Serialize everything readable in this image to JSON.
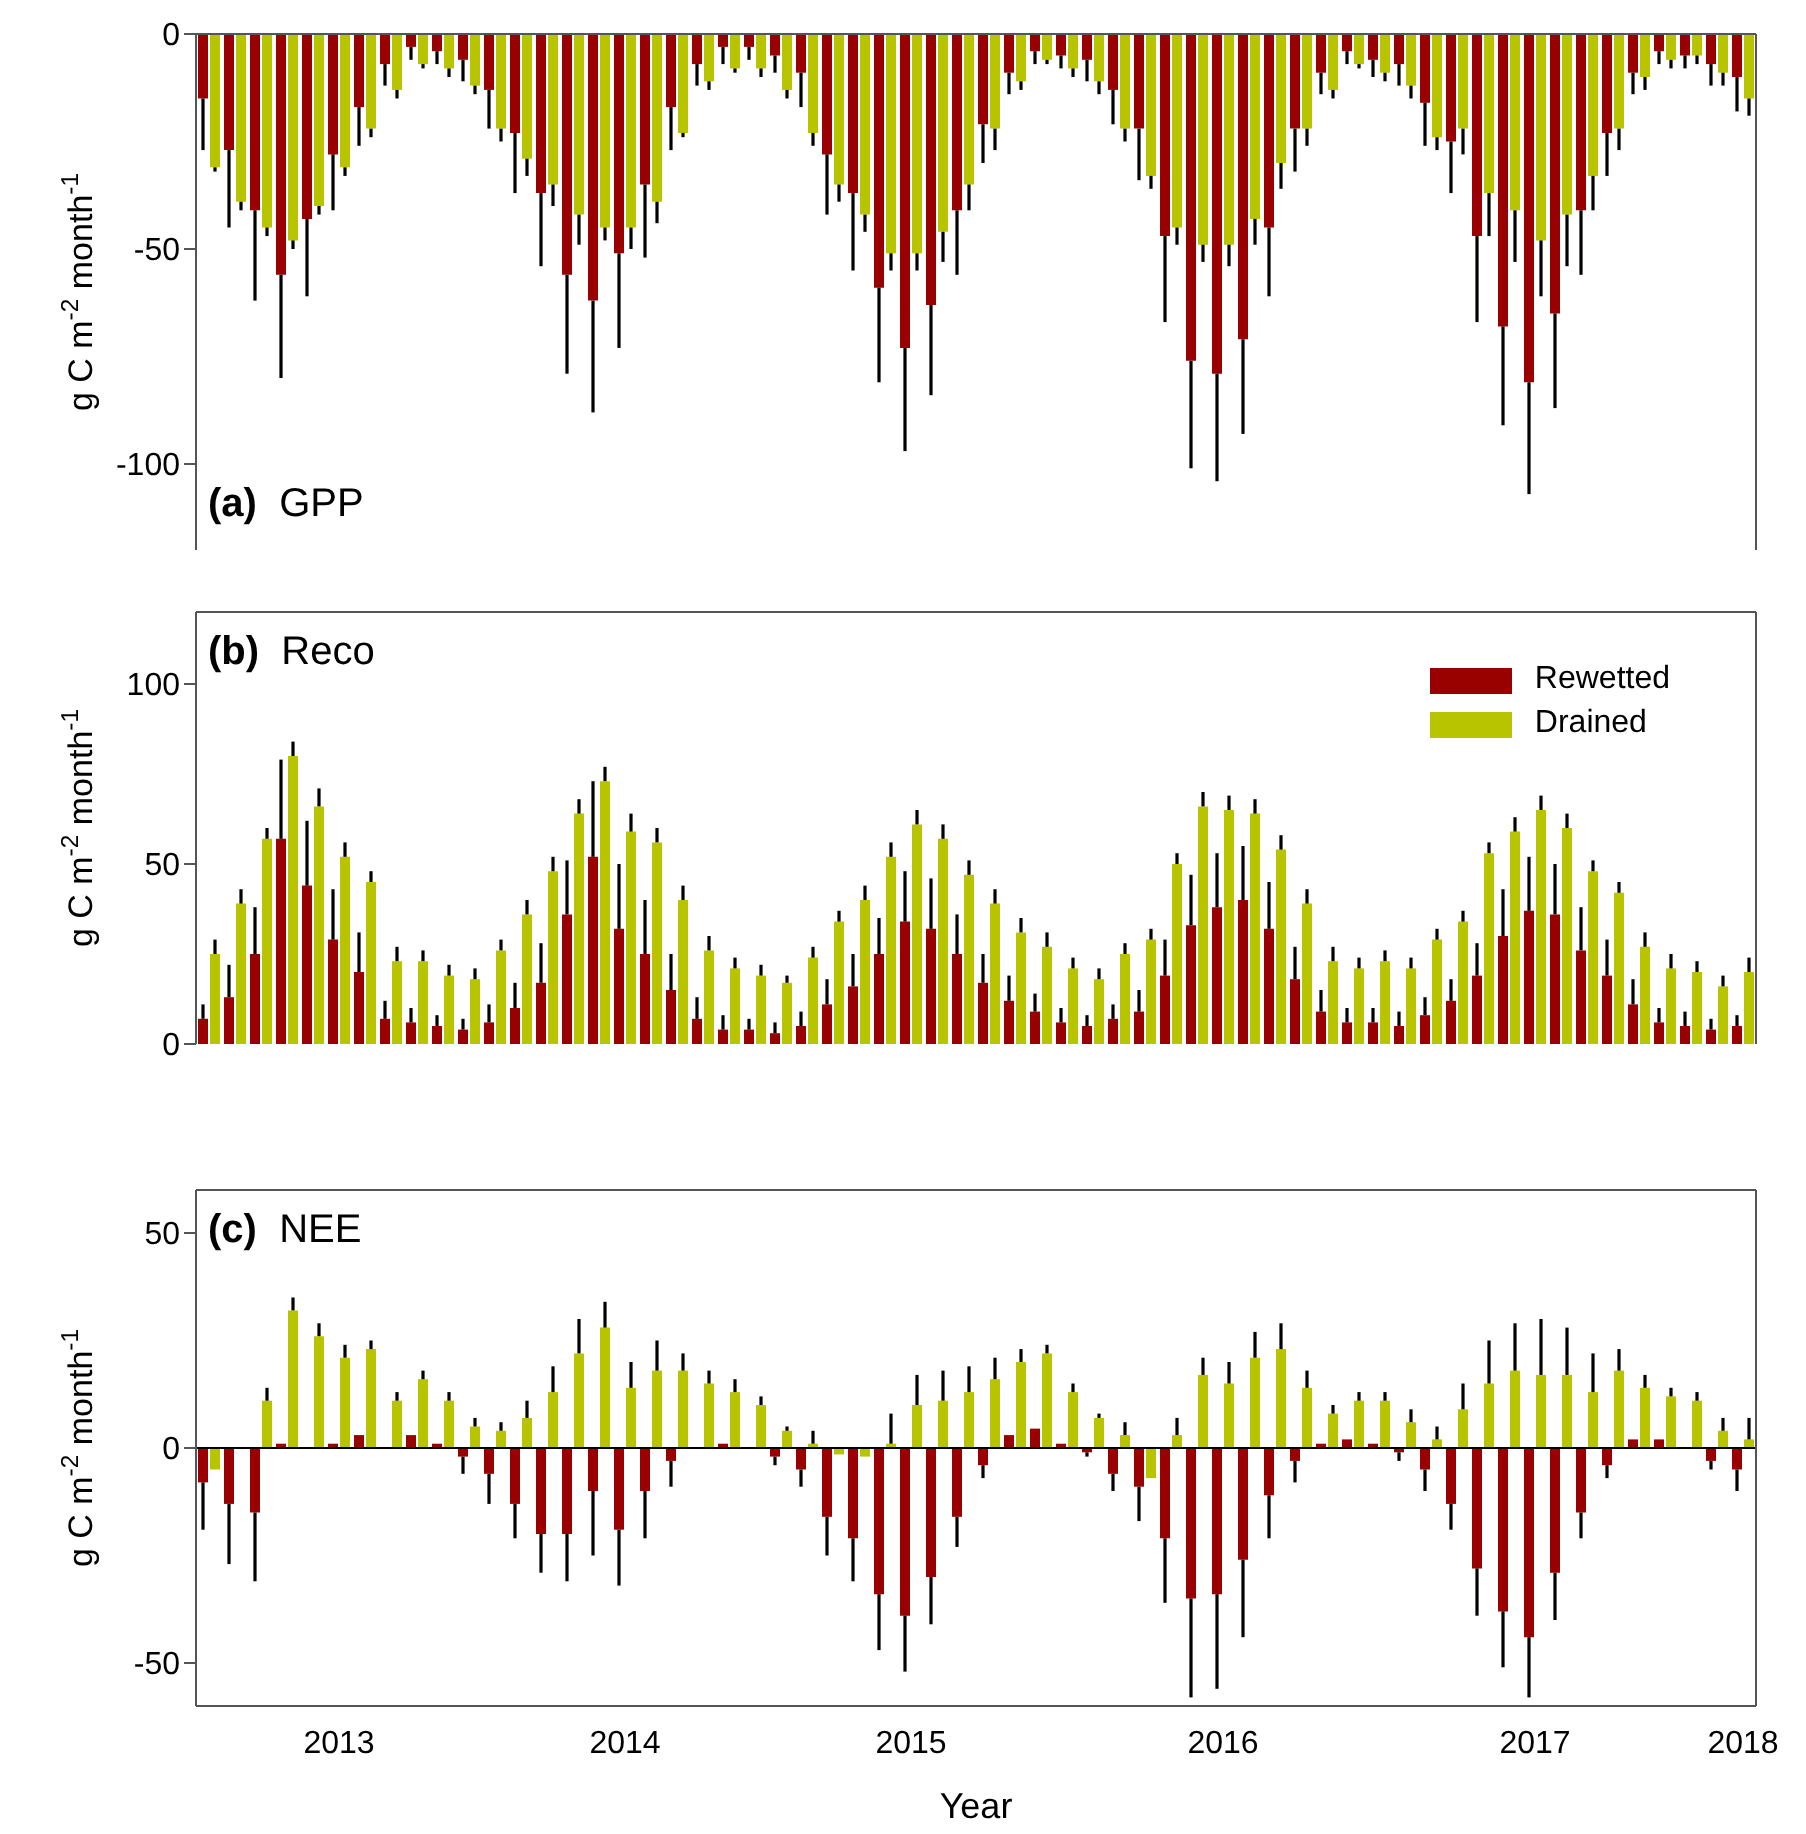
{
  "chart_data": [
    {
      "type": "bar",
      "title": "(a) GPP",
      "ylabel": "g C m$^{-2}$ month$^{-1}$",
      "tick_labels": "y",
      "categories": [
        null,
        null,
        null,
        null,
        null,
        "2013",
        null,
        null,
        null,
        null,
        null,
        null,
        null,
        null,
        null,
        null,
        "2014",
        null,
        null,
        null,
        null,
        null,
        null,
        null,
        null,
        null,
        null,
        "2015",
        null,
        null,
        null,
        null,
        null,
        null,
        null,
        null,
        null,
        null,
        null,
        "2016",
        null,
        null,
        null,
        null,
        null,
        null,
        null,
        null,
        null,
        null,
        null,
        "2017",
        null,
        null,
        null,
        null,
        null,
        null,
        null,
        "2018"
      ],
      "ylim": [
        -120,
        0
      ],
      "yticks": [
        -100,
        -50,
        0
      ],
      "series": [
        {
          "color": "#990000",
          "values": [
            -15,
            -27,
            -41,
            -56,
            -43,
            -28,
            -17,
            -7,
            -3,
            -4,
            -6,
            -13,
            -23,
            -37,
            -56,
            -62,
            -51,
            -35,
            -17,
            -7,
            -3,
            -3,
            -5,
            -9,
            -28,
            -37,
            -59,
            -73,
            -63,
            -41,
            -21,
            -9,
            -4,
            -5,
            -6,
            -13,
            -22,
            -47,
            -76,
            -79,
            -71,
            -45,
            -22,
            -9,
            -4,
            -6,
            -7,
            -16,
            -25,
            -47,
            -68,
            -81,
            -65,
            -41,
            -23,
            -9,
            -4,
            -5,
            -7,
            -10
          ],
          "errors": [
            [
              -27,
              -15
            ],
            [
              -45,
              -27
            ],
            [
              -62,
              -41
            ],
            [
              -80,
              -56
            ],
            [
              -61,
              -43
            ],
            [
              -41,
              -28
            ],
            [
              -26,
              -17
            ],
            [
              -12,
              -7
            ],
            [
              -6,
              -3
            ],
            [
              -7,
              -4
            ],
            [
              -11,
              -6
            ],
            [
              -22,
              -13
            ],
            [
              -37,
              -23
            ],
            [
              -54,
              -37
            ],
            [
              -79,
              -56
            ],
            [
              -88,
              -62
            ],
            [
              -73,
              -51
            ],
            [
              -52,
              -35
            ],
            [
              -27,
              -17
            ],
            [
              -12,
              -7
            ],
            [
              -7,
              -3
            ],
            [
              -6,
              -3
            ],
            [
              -9,
              -5
            ],
            [
              -17,
              -9
            ],
            [
              -42,
              -28
            ],
            [
              -55,
              -37
            ],
            [
              -81,
              -59
            ],
            [
              -97,
              -73
            ],
            [
              -84,
              -63
            ],
            [
              -56,
              -41
            ],
            [
              -30,
              -21
            ],
            [
              -14,
              -9
            ],
            [
              -7,
              -4
            ],
            [
              -8,
              -5
            ],
            [
              -11,
              -6
            ],
            [
              -21,
              -13
            ],
            [
              -34,
              -22
            ],
            [
              -67,
              -47
            ],
            [
              -101,
              -76
            ],
            [
              -104,
              -79
            ],
            [
              -93,
              -71
            ],
            [
              -61,
              -45
            ],
            [
              -32,
              -22
            ],
            [
              -14,
              -9
            ],
            [
              -7,
              -4
            ],
            [
              -10,
              -6
            ],
            [
              -12,
              -7
            ],
            [
              -26,
              -16
            ],
            [
              -37,
              -25
            ],
            [
              -67,
              -47
            ],
            [
              -91,
              -68
            ],
            [
              -107,
              -81
            ],
            [
              -87,
              -65
            ],
            [
              -56,
              -41
            ],
            [
              -33,
              -23
            ],
            [
              -14,
              -9
            ],
            [
              -7,
              -4
            ],
            [
              -8,
              -5
            ],
            [
              -12,
              -7
            ],
            [
              -18,
              -10
            ]
          ]
        },
        {
          "color": "#b9c400",
          "values": [
            -31,
            -39,
            -45,
            -48,
            -40,
            -31,
            -22,
            -13,
            -7,
            -8,
            -12,
            -22,
            -29,
            -35,
            -42,
            -45,
            -45,
            -39,
            -23,
            -11,
            -8,
            -8,
            -13,
            -23,
            -35,
            -42,
            -51,
            -51,
            -46,
            -35,
            -22,
            -11,
            -6,
            -8,
            -11,
            -22,
            -33,
            -45,
            -49,
            -49,
            -43,
            -30,
            -22,
            -13,
            -7,
            -9,
            -12,
            -24,
            -22,
            -37,
            -41,
            -48,
            -42,
            -33,
            -22,
            -10,
            -6,
            -5,
            -9,
            -15
          ],
          "errors": [
            [
              -32,
              -31
            ],
            [
              -41,
              -39
            ],
            [
              -47,
              -45
            ],
            [
              -50,
              -48
            ],
            [
              -42,
              -40
            ],
            [
              -33,
              -31
            ],
            [
              -24,
              -22
            ],
            [
              -15,
              -13
            ],
            [
              -8,
              -7
            ],
            [
              -10,
              -8
            ],
            [
              -14,
              -12
            ],
            [
              -25,
              -22
            ],
            [
              -33,
              -29
            ],
            [
              -40,
              -35
            ],
            [
              -49,
              -42
            ],
            [
              -48,
              -45
            ],
            [
              -50,
              -45
            ],
            [
              -44,
              -39
            ],
            [
              -24,
              -23
            ],
            [
              -13,
              -11
            ],
            [
              -9,
              -8
            ],
            [
              -10,
              -8
            ],
            [
              -15,
              -13
            ],
            [
              -26,
              -23
            ],
            [
              -39,
              -35
            ],
            [
              -46,
              -42
            ],
            [
              -55,
              -51
            ],
            [
              -55,
              -51
            ],
            [
              -53,
              -46
            ],
            [
              -41,
              -35
            ],
            [
              -27,
              -22
            ],
            [
              -13,
              -11
            ],
            [
              -7,
              -6
            ],
            [
              -10,
              -8
            ],
            [
              -14,
              -11
            ],
            [
              -25,
              -22
            ],
            [
              -36,
              -33
            ],
            [
              -49,
              -45
            ],
            [
              -53,
              -49
            ],
            [
              -54,
              -49
            ],
            [
              -49,
              -43
            ],
            [
              -36,
              -30
            ],
            [
              -26,
              -22
            ],
            [
              -15,
              -13
            ],
            [
              -8,
              -7
            ],
            [
              -11,
              -9
            ],
            [
              -15,
              -12
            ],
            [
              -27,
              -24
            ],
            [
              -28,
              -22
            ],
            [
              -47,
              -37
            ],
            [
              -53,
              -41
            ],
            [
              -61,
              -48
            ],
            [
              -54,
              -42
            ],
            [
              -41,
              -33
            ],
            [
              -27,
              -22
            ],
            [
              -13,
              -10
            ],
            [
              -8,
              -6
            ],
            [
              -7,
              -5
            ],
            [
              -12,
              -9
            ],
            [
              -19,
              -15
            ]
          ]
        }
      ]
    },
    {
      "type": "bar",
      "title": "(b) Reco",
      "ylabel": "g C m$^{-2}$ month$^{-1}$",
      "tick_labels": "y",
      "legend": "top right",
      "categories": [
        null,
        null,
        null,
        null,
        null,
        "2013",
        null,
        null,
        null,
        null,
        null,
        null,
        null,
        null,
        null,
        null,
        "2014",
        null,
        null,
        null,
        null,
        null,
        null,
        null,
        null,
        null,
        null,
        "2015",
        null,
        null,
        null,
        null,
        null,
        null,
        null,
        null,
        null,
        null,
        null,
        "2016",
        null,
        null,
        null,
        null,
        null,
        null,
        null,
        null,
        null,
        null,
        null,
        "2017",
        null,
        null,
        null,
        null,
        null,
        null,
        null,
        "2018"
      ],
      "ylim": [
        0,
        120
      ],
      "yticks": [
        0,
        50,
        100
      ],
      "series": [
        {
          "name": "Rewetted",
          "color": "#990000",
          "values": [
            7,
            13,
            25,
            57,
            44,
            29,
            20,
            7,
            6,
            5,
            4,
            6,
            10,
            17,
            36,
            52,
            32,
            25,
            15,
            7,
            4,
            4,
            3,
            5,
            11,
            16,
            25,
            34,
            32,
            25,
            17,
            12,
            9,
            6,
            5,
            7,
            9,
            19,
            33,
            38,
            40,
            32,
            18,
            9,
            6,
            6,
            5,
            8,
            12,
            19,
            30,
            37,
            36,
            26,
            19,
            11,
            6,
            5,
            4,
            5
          ],
          "errors": [
            [
              7,
              11
            ],
            [
              13,
              22
            ],
            [
              25,
              38
            ],
            [
              57,
              79
            ],
            [
              44,
              62
            ],
            [
              29,
              43
            ],
            [
              20,
              31
            ],
            [
              7,
              12
            ],
            [
              6,
              10
            ],
            [
              5,
              8
            ],
            [
              4,
              7
            ],
            [
              6,
              11
            ],
            [
              10,
              17
            ],
            [
              17,
              28
            ],
            [
              36,
              51
            ],
            [
              52,
              73
            ],
            [
              32,
              50
            ],
            [
              25,
              40
            ],
            [
              15,
              25
            ],
            [
              7,
              13
            ],
            [
              4,
              8
            ],
            [
              4,
              7
            ],
            [
              3,
              6
            ],
            [
              5,
              9
            ],
            [
              11,
              18
            ],
            [
              16,
              25
            ],
            [
              25,
              35
            ],
            [
              34,
              48
            ],
            [
              32,
              46
            ],
            [
              25,
              36
            ],
            [
              17,
              25
            ],
            [
              12,
              19
            ],
            [
              9,
              14
            ],
            [
              6,
              10
            ],
            [
              5,
              8
            ],
            [
              7,
              11
            ],
            [
              9,
              15
            ],
            [
              19,
              29
            ],
            [
              33,
              47
            ],
            [
              38,
              53
            ],
            [
              40,
              55
            ],
            [
              32,
              45
            ],
            [
              18,
              27
            ],
            [
              9,
              15
            ],
            [
              6,
              10
            ],
            [
              6,
              10
            ],
            [
              5,
              9
            ],
            [
              8,
              13
            ],
            [
              12,
              18
            ],
            [
              19,
              28
            ],
            [
              30,
              43
            ],
            [
              37,
              52
            ],
            [
              36,
              50
            ],
            [
              26,
              38
            ],
            [
              19,
              29
            ],
            [
              11,
              18
            ],
            [
              6,
              10
            ],
            [
              5,
              9
            ],
            [
              4,
              7
            ],
            [
              5,
              8
            ]
          ]
        },
        {
          "name": "Drained",
          "color": "#b9c400",
          "values": [
            25,
            39,
            57,
            80,
            66,
            52,
            45,
            23,
            23,
            19,
            18,
            26,
            36,
            48,
            64,
            73,
            59,
            56,
            40,
            26,
            21,
            19,
            17,
            24,
            34,
            40,
            52,
            61,
            57,
            47,
            39,
            31,
            27,
            21,
            18,
            25,
            29,
            50,
            66,
            65,
            64,
            54,
            39,
            23,
            21,
            23,
            21,
            29,
            34,
            53,
            59,
            65,
            60,
            48,
            42,
            27,
            21,
            20,
            16,
            20
          ],
          "errors": [
            [
              25,
              29
            ],
            [
              39,
              43
            ],
            [
              57,
              60
            ],
            [
              80,
              84
            ],
            [
              66,
              71
            ],
            [
              52,
              56
            ],
            [
              45,
              48
            ],
            [
              23,
              27
            ],
            [
              23,
              26
            ],
            [
              19,
              22
            ],
            [
              18,
              21
            ],
            [
              26,
              29
            ],
            [
              36,
              40
            ],
            [
              48,
              52
            ],
            [
              64,
              68
            ],
            [
              73,
              77
            ],
            [
              59,
              64
            ],
            [
              56,
              60
            ],
            [
              40,
              44
            ],
            [
              26,
              30
            ],
            [
              21,
              24
            ],
            [
              19,
              22
            ],
            [
              17,
              19
            ],
            [
              24,
              27
            ],
            [
              34,
              37
            ],
            [
              40,
              44
            ],
            [
              52,
              56
            ],
            [
              61,
              65
            ],
            [
              57,
              61
            ],
            [
              47,
              51
            ],
            [
              39,
              43
            ],
            [
              31,
              35
            ],
            [
              27,
              31
            ],
            [
              21,
              24
            ],
            [
              18,
              21
            ],
            [
              25,
              28
            ],
            [
              29,
              32
            ],
            [
              50,
              53
            ],
            [
              66,
              70
            ],
            [
              65,
              69
            ],
            [
              64,
              68
            ],
            [
              54,
              58
            ],
            [
              39,
              43
            ],
            [
              23,
              27
            ],
            [
              21,
              24
            ],
            [
              23,
              26
            ],
            [
              21,
              24
            ],
            [
              29,
              32
            ],
            [
              34,
              37
            ],
            [
              53,
              56
            ],
            [
              59,
              63
            ],
            [
              65,
              69
            ],
            [
              60,
              64
            ],
            [
              48,
              51
            ],
            [
              42,
              45
            ],
            [
              27,
              31
            ],
            [
              21,
              25
            ],
            [
              20,
              23
            ],
            [
              16,
              19
            ],
            [
              20,
              24
            ]
          ]
        }
      ]
    },
    {
      "type": "bar",
      "title": "(c) NEE",
      "ylabel": "g C m$^{-2}$ month$^{-1}$",
      "xlabel": "Year",
      "categories": [
        null,
        null,
        null,
        null,
        null,
        "2013",
        null,
        null,
        null,
        null,
        null,
        null,
        null,
        null,
        null,
        null,
        "2014",
        null,
        null,
        null,
        null,
        null,
        null,
        null,
        null,
        null,
        null,
        "2015",
        null,
        null,
        null,
        null,
        null,
        null,
        null,
        null,
        null,
        null,
        null,
        "2016",
        null,
        null,
        null,
        null,
        null,
        null,
        null,
        null,
        null,
        null,
        null,
        "2017",
        null,
        null,
        null,
        null,
        null,
        null,
        null,
        "2018"
      ],
      "ylim": [
        -60,
        60
      ],
      "yticks": [
        -50,
        0,
        50
      ],
      "ref_lines": [
        {
          "axis": "y",
          "value": 0,
          "color": "#000000"
        }
      ],
      "series": [
        {
          "color": "#990000",
          "values": [
            -8,
            -13,
            -15,
            1,
            null,
            1,
            3,
            null,
            3,
            1,
            -2,
            -6,
            -13,
            -20,
            -20,
            -10,
            -19,
            -10,
            -3,
            0,
            1,
            0,
            -2,
            -5,
            -16,
            -21,
            -34,
            -39,
            -30,
            -16,
            -4,
            3,
            4.5,
            1,
            -1,
            -6,
            -9,
            -21,
            -35,
            -34,
            -26,
            -11,
            -3,
            1,
            2,
            1,
            -1,
            -5,
            -13,
            -28,
            -38,
            -44,
            -29,
            -15,
            -4,
            2,
            2,
            null,
            -3,
            -5
          ],
          "errors": [
            [
              -19,
              -8
            ],
            [
              -27,
              -13
            ],
            [
              -31,
              -15
            ],
            null,
            null,
            null,
            null,
            null,
            null,
            null,
            [
              -6,
              -2
            ],
            [
              -13,
              -6
            ],
            [
              -21,
              -13
            ],
            [
              -29,
              -20
            ],
            [
              -31,
              -20
            ],
            [
              -25,
              -10
            ],
            [
              -32,
              -19
            ],
            [
              -21,
              -10
            ],
            [
              -9,
              -3
            ],
            null,
            null,
            null,
            [
              -4,
              -2
            ],
            [
              -9,
              -5
            ],
            [
              -25,
              -16
            ],
            [
              -31,
              -21
            ],
            [
              -47,
              -34
            ],
            [
              -52,
              -39
            ],
            [
              -41,
              -30
            ],
            [
              -23,
              -16
            ],
            [
              -7,
              -4
            ],
            null,
            null,
            null,
            [
              -2,
              -1
            ],
            [
              -10,
              -6
            ],
            [
              -17,
              -9
            ],
            [
              -36,
              -21
            ],
            [
              -58,
              -35
            ],
            [
              -56,
              -34
            ],
            [
              -44,
              -26
            ],
            [
              -21,
              -11
            ],
            [
              -8,
              -3
            ],
            null,
            null,
            null,
            [
              -3,
              -1
            ],
            [
              -10,
              -5
            ],
            [
              -19,
              -13
            ],
            [
              -39,
              -28
            ],
            [
              -51,
              -38
            ],
            [
              -58,
              -44
            ],
            [
              -40,
              -29
            ],
            [
              -21,
              -15
            ],
            [
              -7,
              -4
            ],
            null,
            null,
            null,
            [
              -5,
              -3
            ],
            [
              -10,
              -5
            ]
          ]
        },
        {
          "color": "#b9c400",
          "values": [
            -5,
            null,
            11,
            32,
            26,
            21,
            23,
            11,
            16,
            11,
            5,
            4,
            7,
            13,
            22,
            28,
            14,
            18,
            18,
            15,
            13,
            10,
            4,
            1,
            -1.5,
            -2,
            1,
            10,
            11,
            13,
            16,
            20,
            22,
            13,
            7,
            3,
            -7,
            3,
            17,
            15,
            21,
            23,
            14,
            8,
            11,
            11,
            6,
            2,
            9,
            15,
            18,
            17,
            17,
            13,
            18,
            14,
            12,
            11,
            4,
            2
          ],
          "errors": [
            null,
            null,
            [
              11,
              14
            ],
            [
              32,
              35
            ],
            [
              26,
              29
            ],
            [
              21,
              24
            ],
            [
              23,
              25
            ],
            [
              11,
              13
            ],
            [
              16,
              18
            ],
            [
              11,
              13
            ],
            [
              5,
              7
            ],
            [
              4,
              6
            ],
            [
              7,
              11
            ],
            [
              13,
              19
            ],
            [
              22,
              30
            ],
            [
              28,
              34
            ],
            [
              14,
              20
            ],
            [
              18,
              25
            ],
            [
              18,
              22
            ],
            [
              15,
              18
            ],
            [
              13,
              16
            ],
            [
              10,
              12
            ],
            [
              4,
              5
            ],
            [
              1,
              4
            ],
            null,
            null,
            [
              1,
              8
            ],
            [
              10,
              17
            ],
            [
              11,
              18
            ],
            [
              13,
              19
            ],
            [
              16,
              21
            ],
            [
              20,
              23
            ],
            [
              22,
              24
            ],
            [
              13,
              15
            ],
            [
              7,
              8
            ],
            [
              3,
              6
            ],
            null,
            [
              3,
              7
            ],
            [
              17,
              21
            ],
            [
              15,
              20
            ],
            [
              21,
              27
            ],
            [
              23,
              29
            ],
            [
              14,
              18
            ],
            [
              8,
              10
            ],
            [
              11,
              13
            ],
            [
              11,
              13
            ],
            [
              6,
              9
            ],
            [
              2,
              5
            ],
            [
              9,
              15
            ],
            [
              15,
              25
            ],
            [
              18,
              29
            ],
            [
              17,
              30
            ],
            [
              17,
              28
            ],
            [
              13,
              22
            ],
            [
              18,
              23
            ],
            [
              14,
              17
            ],
            [
              12,
              14
            ],
            [
              11,
              13
            ],
            [
              4,
              7
            ],
            [
              2,
              7
            ]
          ]
        }
      ]
    }
  ]
}
